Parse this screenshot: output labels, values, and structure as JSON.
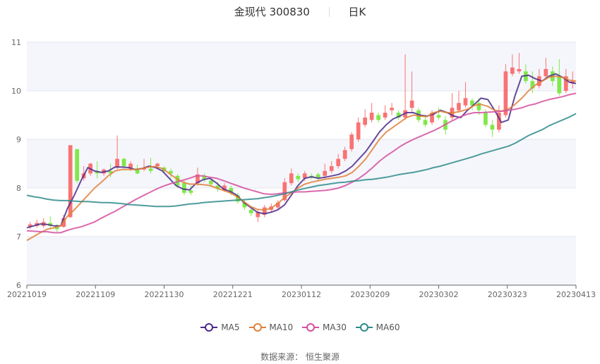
{
  "header": {
    "stock_name": "金现代",
    "stock_code": "300830",
    "period": "日K"
  },
  "legend": [
    {
      "label": "MA5",
      "color": "#4b2a8a"
    },
    {
      "label": "MA10",
      "color": "#e0803a"
    },
    {
      "label": "MA30",
      "color": "#d54fa0"
    },
    {
      "label": "MA60",
      "color": "#2e8b8b"
    }
  ],
  "footer": {
    "source_label": "数据来源：",
    "source_name": "恒生聚源"
  },
  "colors": {
    "up": "#f87373",
    "down": "#7fe84a",
    "grid": "#e3e6ef",
    "band": "#f5f6fb",
    "axis": "#666666"
  },
  "chart_data": {
    "type": "candlestick",
    "title": "金现代 300830 日K",
    "xlabel": "",
    "ylabel": "",
    "ylim": [
      6,
      11
    ],
    "yticks": [
      6,
      7,
      8,
      9,
      10,
      11
    ],
    "xticks": [
      "20221019",
      "20221109",
      "20221130",
      "20221221",
      "20230112",
      "20230209",
      "20230302",
      "20230323",
      "20230413"
    ],
    "grid": true,
    "legend_position": "bottom",
    "series": [
      {
        "name": "MA5",
        "color": "#4b2a8a",
        "values": [
          7.18,
          7.22,
          7.26,
          7.25,
          7.22,
          7.22,
          7.58,
          7.85,
          8.15,
          8.42,
          8.35,
          8.32,
          8.35,
          8.43,
          8.43,
          8.42,
          8.38,
          8.4,
          8.45,
          8.42,
          8.35,
          8.2,
          8.05,
          7.98,
          7.96,
          8.1,
          8.17,
          8.2,
          8.1,
          7.98,
          7.93,
          7.85,
          7.7,
          7.6,
          7.5,
          7.47,
          7.5,
          7.55,
          7.65,
          7.85,
          8.05,
          8.2,
          8.23,
          8.2,
          8.22,
          8.25,
          8.28,
          8.35,
          8.45,
          8.6,
          8.75,
          8.95,
          9.15,
          9.3,
          9.42,
          9.48,
          9.55,
          9.55,
          9.5,
          9.48,
          9.52,
          9.6,
          9.55,
          9.48,
          9.45,
          9.6,
          9.72,
          9.85,
          9.82,
          9.6,
          9.35,
          9.4,
          9.9,
          10.3,
          10.32,
          10.25,
          10.2,
          10.3,
          10.35,
          10.28,
          10.18,
          10.15
        ]
      },
      {
        "name": "MA10",
        "color": "#e0803a",
        "values": [
          6.92,
          7.0,
          7.08,
          7.15,
          7.18,
          7.22,
          7.42,
          7.55,
          7.7,
          7.85,
          8.0,
          8.12,
          8.25,
          8.35,
          8.38,
          8.38,
          8.38,
          8.4,
          8.43,
          8.44,
          8.4,
          8.3,
          8.2,
          8.12,
          8.08,
          8.08,
          8.07,
          8.05,
          8.0,
          7.95,
          7.9,
          7.82,
          7.72,
          7.62,
          7.56,
          7.55,
          7.58,
          7.68,
          7.8,
          7.9,
          8.0,
          8.08,
          8.12,
          8.15,
          8.18,
          8.2,
          8.22,
          8.25,
          8.32,
          8.45,
          8.6,
          8.8,
          9.0,
          9.15,
          9.25,
          9.35,
          9.45,
          9.5,
          9.48,
          9.47,
          9.55,
          9.58,
          9.55,
          9.55,
          9.58,
          9.62,
          9.7,
          9.72,
          9.68,
          9.6,
          9.58,
          9.62,
          9.72,
          9.85,
          10.0,
          10.12,
          10.2,
          10.28,
          10.3,
          10.28,
          10.22,
          10.2
        ]
      },
      {
        "name": "MA30",
        "color": "#d54fa0",
        "values": [
          7.12,
          7.11,
          7.1,
          7.1,
          7.08,
          7.08,
          7.13,
          7.17,
          7.2,
          7.25,
          7.3,
          7.38,
          7.45,
          7.52,
          7.6,
          7.68,
          7.76,
          7.83,
          7.9,
          7.97,
          8.03,
          8.08,
          8.12,
          8.16,
          8.2,
          8.25,
          8.25,
          8.22,
          8.2,
          8.15,
          8.1,
          8.05,
          8.0,
          7.96,
          7.92,
          7.88,
          7.87,
          7.88,
          7.9,
          7.91,
          7.92,
          7.92,
          7.93,
          7.94,
          7.95,
          7.97,
          8.0,
          8.05,
          8.12,
          8.2,
          8.3,
          8.42,
          8.55,
          8.66,
          8.75,
          8.85,
          8.93,
          9.0,
          9.06,
          9.12,
          9.18,
          9.25,
          9.33,
          9.4,
          9.47,
          9.52,
          9.55,
          9.55,
          9.56,
          9.57,
          9.58,
          9.6,
          9.62,
          9.65,
          9.7,
          9.73,
          9.78,
          9.82,
          9.85,
          9.88,
          9.92,
          9.95
        ]
      },
      {
        "name": "MA60",
        "color": "#2e8b8b",
        "values": [
          7.85,
          7.82,
          7.8,
          7.77,
          7.75,
          7.74,
          7.74,
          7.73,
          7.72,
          7.72,
          7.71,
          7.7,
          7.7,
          7.69,
          7.68,
          7.66,
          7.65,
          7.64,
          7.63,
          7.62,
          7.62,
          7.62,
          7.63,
          7.65,
          7.67,
          7.68,
          7.7,
          7.71,
          7.72,
          7.73,
          7.74,
          7.75,
          7.76,
          7.77,
          7.78,
          7.8,
          7.82,
          7.85,
          7.88,
          7.92,
          7.96,
          7.99,
          8.02,
          8.05,
          8.07,
          8.09,
          8.11,
          8.12,
          8.14,
          8.15,
          8.17,
          8.18,
          8.2,
          8.22,
          8.25,
          8.28,
          8.3,
          8.32,
          8.35,
          8.38,
          8.42,
          8.45,
          8.49,
          8.53,
          8.57,
          8.61,
          8.65,
          8.7,
          8.74,
          8.78,
          8.82,
          8.86,
          8.92,
          9.0,
          9.08,
          9.14,
          9.2,
          9.28,
          9.34,
          9.4,
          9.46,
          9.53
        ]
      }
    ],
    "candles_ohlc": [
      [
        7.2,
        7.25,
        7.15,
        7.3
      ],
      [
        7.22,
        7.28,
        7.18,
        7.35
      ],
      [
        7.22,
        7.3,
        7.18,
        7.38
      ],
      [
        7.28,
        7.22,
        7.15,
        7.42
      ],
      [
        7.22,
        7.15,
        7.1,
        7.25
      ],
      [
        7.2,
        7.38,
        7.18,
        7.45
      ],
      [
        7.4,
        8.88,
        7.38,
        8.88
      ],
      [
        8.8,
        8.15,
        8.1,
        8.8
      ],
      [
        8.2,
        8.3,
        8.15,
        8.45
      ],
      [
        8.3,
        8.5,
        8.25,
        8.52
      ],
      [
        8.35,
        8.3,
        8.2,
        8.55
      ],
      [
        8.3,
        8.38,
        8.25,
        8.4
      ],
      [
        8.35,
        8.3,
        8.22,
        8.5
      ],
      [
        8.42,
        8.6,
        8.38,
        9.08
      ],
      [
        8.6,
        8.45,
        8.4,
        8.62
      ],
      [
        8.4,
        8.5,
        8.35,
        8.55
      ],
      [
        8.4,
        8.3,
        8.28,
        8.48
      ],
      [
        8.38,
        8.42,
        8.35,
        8.6
      ],
      [
        8.4,
        8.35,
        8.3,
        8.62
      ],
      [
        8.45,
        8.5,
        8.4,
        8.52
      ],
      [
        8.42,
        8.35,
        8.32,
        8.45
      ],
      [
        8.35,
        8.3,
        8.2,
        8.4
      ],
      [
        8.25,
        8.05,
        8.0,
        8.28
      ],
      [
        8.1,
        7.9,
        7.85,
        8.15
      ],
      [
        7.95,
        7.9,
        7.85,
        8.05
      ],
      [
        8.1,
        8.28,
        8.05,
        8.42
      ],
      [
        8.25,
        8.18,
        8.12,
        8.3
      ],
      [
        8.15,
        8.08,
        8.02,
        8.2
      ],
      [
        8.05,
        7.98,
        7.92,
        8.12
      ],
      [
        7.95,
        8.05,
        7.92,
        8.1
      ],
      [
        8.0,
        7.9,
        7.85,
        8.05
      ],
      [
        7.85,
        7.72,
        7.68,
        7.9
      ],
      [
        7.7,
        7.6,
        7.55,
        7.75
      ],
      [
        7.55,
        7.48,
        7.42,
        7.6
      ],
      [
        7.4,
        7.5,
        7.3,
        7.55
      ],
      [
        7.45,
        7.6,
        7.4,
        7.65
      ],
      [
        7.55,
        7.62,
        7.5,
        7.68
      ],
      [
        7.6,
        7.7,
        7.55,
        7.75
      ],
      [
        7.75,
        8.12,
        7.72,
        8.2
      ],
      [
        8.1,
        8.3,
        8.05,
        8.4
      ],
      [
        8.25,
        8.18,
        8.12,
        8.3
      ],
      [
        8.2,
        8.3,
        8.15,
        8.35
      ],
      [
        8.25,
        8.22,
        8.18,
        8.3
      ],
      [
        8.28,
        8.2,
        8.15,
        8.32
      ],
      [
        8.25,
        8.35,
        8.2,
        8.5
      ],
      [
        8.35,
        8.45,
        8.3,
        8.55
      ],
      [
        8.45,
        8.6,
        8.4,
        8.7
      ],
      [
        8.6,
        8.78,
        8.55,
        8.85
      ],
      [
        8.8,
        9.1,
        8.75,
        9.15
      ],
      [
        9.0,
        9.35,
        8.95,
        9.45
      ],
      [
        9.3,
        9.45,
        9.25,
        9.62
      ],
      [
        9.4,
        9.55,
        9.35,
        9.75
      ],
      [
        9.5,
        9.4,
        9.35,
        9.55
      ],
      [
        9.45,
        9.55,
        9.4,
        9.7
      ],
      [
        9.6,
        9.65,
        9.5,
        9.75
      ],
      [
        9.55,
        9.45,
        9.4,
        9.6
      ],
      [
        9.45,
        9.6,
        9.4,
        10.75
      ],
      [
        9.65,
        9.8,
        9.55,
        10.4
      ],
      [
        9.6,
        9.4,
        9.35,
        9.65
      ],
      [
        9.4,
        9.3,
        9.25,
        9.5
      ],
      [
        9.35,
        9.55,
        9.3,
        9.6
      ],
      [
        9.5,
        9.45,
        9.4,
        9.65
      ],
      [
        9.4,
        9.2,
        9.1,
        9.48
      ],
      [
        9.45,
        9.65,
        9.4,
        9.95
      ],
      [
        9.6,
        9.75,
        9.55,
        10.0
      ],
      [
        9.7,
        9.85,
        9.65,
        10.18
      ],
      [
        9.8,
        9.7,
        9.6,
        9.85
      ],
      [
        9.75,
        9.6,
        9.5,
        9.85
      ],
      [
        9.55,
        9.3,
        9.25,
        9.62
      ],
      [
        9.3,
        9.2,
        9.05,
        9.4
      ],
      [
        9.2,
        9.55,
        9.15,
        9.7
      ],
      [
        9.5,
        10.4,
        9.45,
        10.55
      ],
      [
        10.35,
        10.48,
        10.3,
        10.75
      ],
      [
        10.4,
        10.45,
        10.35,
        10.78
      ],
      [
        10.4,
        10.2,
        10.15,
        10.55
      ],
      [
        10.2,
        10.05,
        9.95,
        10.4
      ],
      [
        10.1,
        10.3,
        10.05,
        10.45
      ],
      [
        10.3,
        10.45,
        10.25,
        10.68
      ],
      [
        10.4,
        10.2,
        10.1,
        10.5
      ],
      [
        10.3,
        9.95,
        9.9,
        10.65
      ],
      [
        10.0,
        10.3,
        9.95,
        10.45
      ],
      [
        10.15,
        10.2,
        10.05,
        10.4
      ]
    ],
    "candle_ohlc_format": [
      "open",
      "close",
      "low",
      "high"
    ]
  }
}
